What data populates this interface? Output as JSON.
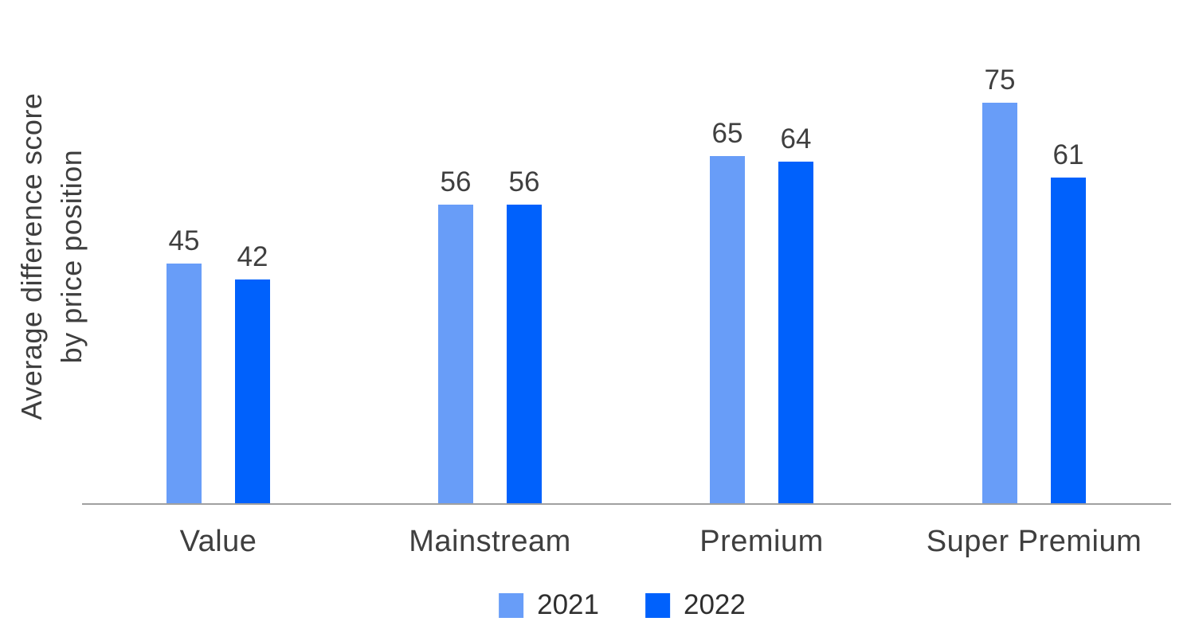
{
  "chart": {
    "y_axis_label_line1": "Average difference score",
    "y_axis_label_line2": "by price position"
  },
  "chart_data": {
    "type": "bar",
    "categories": [
      "Value",
      "Mainstream",
      "Premium",
      "Super Premium"
    ],
    "series": [
      {
        "name": "2021",
        "color": "#689DF8",
        "values": [
          45,
          56,
          65,
          75
        ]
      },
      {
        "name": "2022",
        "color": "#0061FC",
        "values": [
          42,
          56,
          64,
          61
        ]
      }
    ],
    "title": "",
    "xlabel": "",
    "ylabel": "Average difference score by price position",
    "ylim": [
      0,
      80
    ],
    "grid": false,
    "legend_position": "bottom",
    "value_labels": true,
    "axis_line_color": "#A0A0A0",
    "text_color": "#3F3F3F"
  }
}
